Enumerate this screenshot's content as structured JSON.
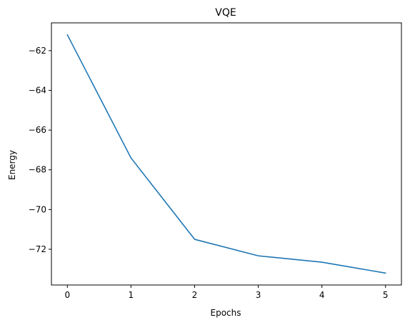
{
  "chart_data": {
    "type": "line",
    "title": "VQE",
    "xlabel": "Epochs",
    "ylabel": "Energy",
    "x": [
      0,
      1,
      2,
      3,
      4,
      5
    ],
    "series": [
      {
        "values": [
          -61.2,
          -67.4,
          -71.5,
          -72.33,
          -72.65,
          -73.2
        ],
        "color": "#1f77b4"
      }
    ],
    "xlim": [
      -0.25,
      5.25
    ],
    "ylim": [
      -73.8,
      -60.6
    ],
    "xticks": [
      0,
      1,
      2,
      3,
      4,
      5
    ],
    "yticks": [
      -62,
      -64,
      -66,
      -68,
      -70,
      -72
    ],
    "xtick_labels": [
      "0",
      "1",
      "2",
      "3",
      "4",
      "5"
    ],
    "ytick_labels": [
      "−62",
      "−64",
      "−66",
      "−68",
      "−70",
      "−72"
    ],
    "grid": false,
    "legend": "none"
  }
}
